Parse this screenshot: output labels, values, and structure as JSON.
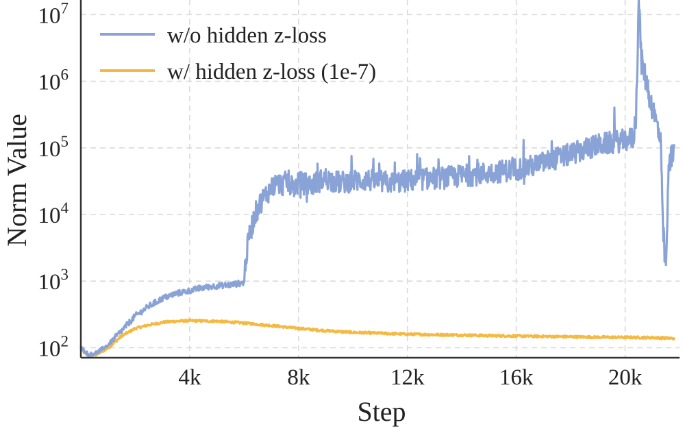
{
  "chart_data": {
    "type": "line",
    "title": "",
    "xlabel": "Step",
    "ylabel": "Norm Value",
    "y_scale": "log",
    "xlim": [
      0,
      22000
    ],
    "ylim_exponents": [
      1.85,
      7.22
    ],
    "x_ticks": [
      {
        "value": 4000,
        "label": "4k"
      },
      {
        "value": 8000,
        "label": "8k"
      },
      {
        "value": 12000,
        "label": "12k"
      },
      {
        "value": 16000,
        "label": "16k"
      },
      {
        "value": 20000,
        "label": "20k"
      }
    ],
    "y_ticks": [
      {
        "exp": 2,
        "base": "10",
        "sup": "2"
      },
      {
        "exp": 3,
        "base": "10",
        "sup": "3"
      },
      {
        "exp": 4,
        "base": "10",
        "sup": "4"
      },
      {
        "exp": 5,
        "base": "10",
        "sup": "5"
      },
      {
        "exp": 6,
        "base": "10",
        "sup": "6"
      },
      {
        "exp": 7,
        "base": "10",
        "sup": "7"
      }
    ],
    "grid": true,
    "legend_position": "top-left",
    "series": [
      {
        "name": "w/o hidden z-loss",
        "color": "#8aa3d6",
        "x": [
          0,
          300,
          600,
          1000,
          1500,
          2000,
          2500,
          3000,
          3500,
          4000,
          4500,
          5000,
          5500,
          6000,
          6050,
          6200,
          6400,
          6600,
          6800,
          7000,
          7200,
          7400,
          7600,
          7800,
          8000,
          8500,
          9000,
          9500,
          10000,
          10500,
          11000,
          11500,
          12000,
          12500,
          13000,
          13500,
          14000,
          14500,
          15000,
          15500,
          16000,
          16500,
          17000,
          17500,
          18000,
          18500,
          19000,
          19500,
          20000,
          20300,
          20400,
          20500,
          20600,
          20800,
          21000,
          21200,
          21300,
          21400,
          21500,
          21600,
          21800
        ],
        "y": [
          100,
          78,
          85,
          110,
          180,
          300,
          420,
          550,
          650,
          720,
          800,
          850,
          880,
          950,
          2000,
          5000,
          10000,
          15000,
          20000,
          25000,
          30000,
          28000,
          32000,
          25000,
          30000,
          28000,
          35000,
          30000,
          32000,
          33000,
          31000,
          30000,
          32000,
          34000,
          35000,
          36000,
          38000,
          40000,
          42000,
          45000,
          48000,
          52000,
          60000,
          70000,
          80000,
          95000,
          110000,
          120000,
          130000,
          140000,
          300000,
          18000000,
          2000000,
          900000,
          400000,
          200000,
          120000,
          5000,
          1500,
          50000,
          110000
        ]
      },
      {
        "name": "w/ hidden z-loss (1e-7)",
        "color": "#f5b942",
        "x": [
          0,
          300,
          600,
          1000,
          1500,
          2000,
          2500,
          3000,
          3500,
          4000,
          5000,
          6000,
          7000,
          8000,
          9000,
          10000,
          11000,
          12000,
          13000,
          14000,
          15000,
          16000,
          17000,
          18000,
          19000,
          20000,
          21000,
          21800
        ],
        "y": [
          95,
          75,
          80,
          100,
          150,
          195,
          220,
          240,
          250,
          255,
          250,
          235,
          215,
          195,
          180,
          170,
          165,
          160,
          157,
          155,
          152,
          150,
          148,
          146,
          144,
          143,
          142,
          138
        ]
      }
    ]
  }
}
